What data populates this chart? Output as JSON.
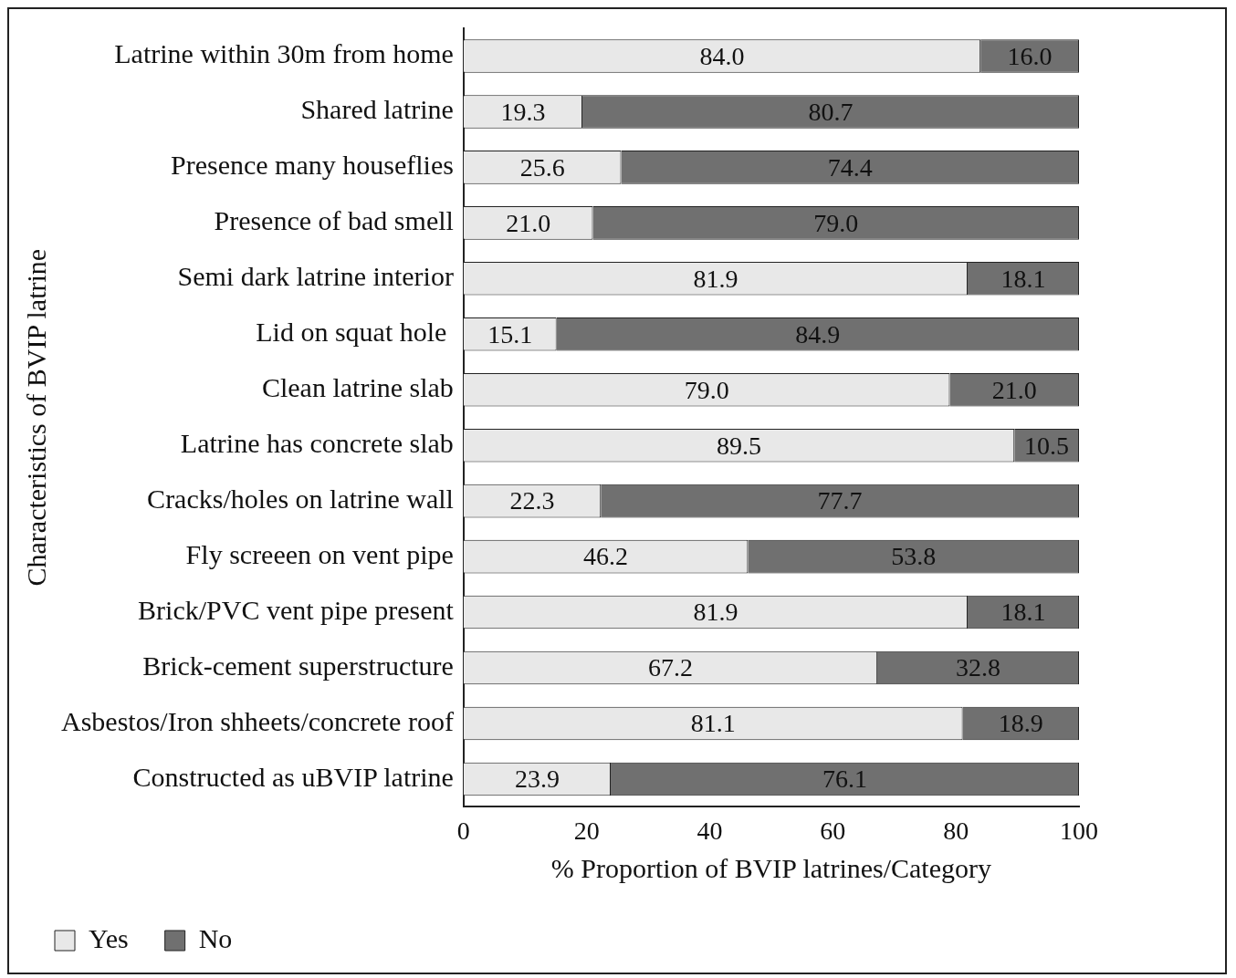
{
  "chart_data": {
    "type": "bar",
    "orientation": "horizontal",
    "stacked": true,
    "categories": [
      "Latrine within 30m from home",
      "Shared latrine",
      "Presence many houseflies",
      "Presence of bad smell",
      "Semi dark latrine interior",
      "Lid on squat hole ",
      "Clean latrine slab",
      "Latrine has concrete slab",
      "Cracks/holes on latrine wall",
      "Fly screeen on vent pipe",
      "Brick/PVC vent pipe present",
      "Brick-cement superstructure",
      "Asbestos/Iron shheets/concrete roof",
      "Constructed as uBVIP latrine"
    ],
    "series": [
      {
        "name": "Yes",
        "color": "#e8e8e8",
        "values": [
          84.0,
          19.3,
          25.6,
          21.0,
          81.9,
          15.1,
          79.0,
          89.5,
          22.3,
          46.2,
          81.9,
          67.2,
          81.1,
          23.9
        ],
        "value_labels": [
          "84.0",
          "19.3",
          "25.6",
          "21.0",
          "81.9",
          "15.1",
          "79.0",
          "89.5",
          "22.3",
          "46.2",
          "81.9",
          "67.2",
          "81.1",
          "23.9"
        ]
      },
      {
        "name": "No",
        "color": "#707070",
        "values": [
          16.0,
          80.7,
          74.4,
          79.0,
          18.1,
          84.9,
          21.0,
          10.5,
          77.7,
          53.8,
          18.1,
          32.8,
          18.9,
          76.1
        ],
        "value_labels": [
          "16.0",
          "80.7",
          "74.4",
          "79.0",
          "18.1",
          "84.9",
          "21.0",
          "10.5",
          "77.7",
          "53.8",
          "18.1",
          "32.8",
          "18.9",
          "76.1"
        ]
      }
    ],
    "xlim": [
      0,
      100
    ],
    "xticks": [
      0,
      20,
      40,
      60,
      80,
      100
    ],
    "xlabel": "% Proportion of BVIP latrines/Category",
    "ylabel": "Characteristics of BVIP latrine",
    "legend": "bottom left",
    "grid": false
  }
}
